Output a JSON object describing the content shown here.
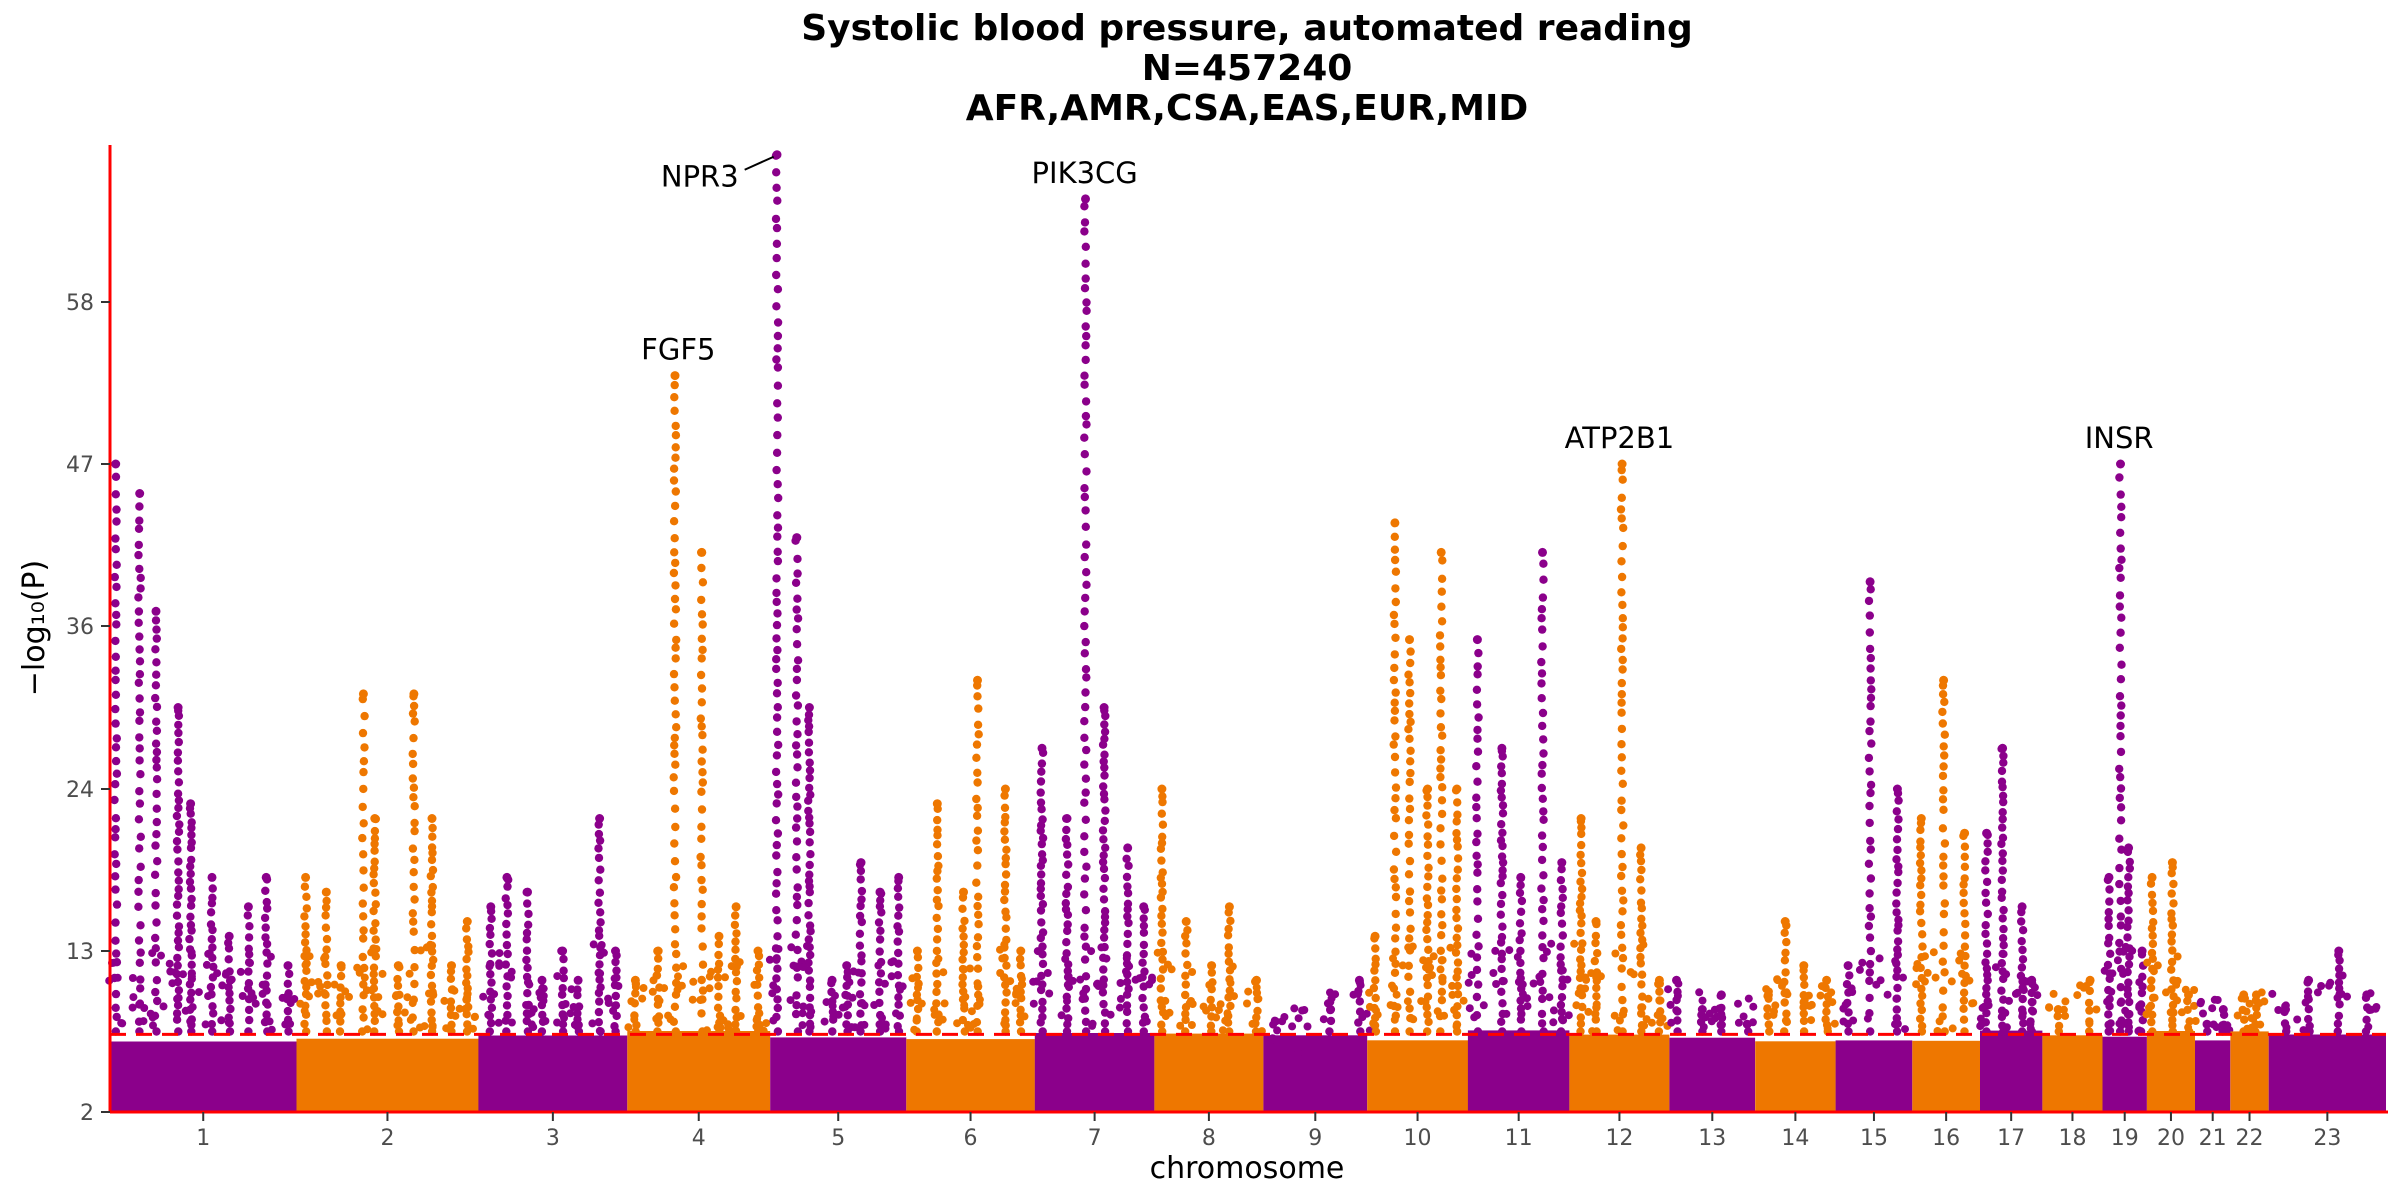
{
  "chart_data": {
    "type": "scatter",
    "subtype": "manhattan",
    "title_lines": [
      "Systolic blood pressure, automated reading",
      "N=457240",
      "AFR,AMR,CSA,EAS,EUR,MID"
    ],
    "xlabel": "chromosome",
    "ylabel": "−log₁₀(P)",
    "ylim": [
      2,
      68.5
    ],
    "yticks": [
      2,
      13,
      24,
      36,
      47,
      58
    ],
    "y_axis_transform": "compressed above ~13",
    "significance_threshold": 7.3,
    "colors": {
      "odd_chromosomes": "#8B008B",
      "even_chromosomes": "#EE7700",
      "threshold_line": "#FF0000",
      "axis_line": "#FF0000"
    },
    "grid": false,
    "legend": "none",
    "chromosomes": [
      {
        "label": "1",
        "peaks": [
          47,
          45,
          37,
          30,
          23,
          18,
          14,
          16,
          18,
          12
        ]
      },
      {
        "label": "2",
        "peaks": [
          18,
          17,
          12,
          31,
          22,
          12,
          31,
          22,
          12,
          15
        ]
      },
      {
        "label": "3",
        "peaks": [
          16,
          18,
          17,
          11,
          13,
          11,
          22,
          13
        ]
      },
      {
        "label": "4",
        "peaks": [
          11,
          13,
          53,
          41,
          14,
          16,
          13
        ]
      },
      {
        "label": "5",
        "peaks": [
          68,
          42,
          30,
          11,
          12,
          19,
          17,
          18
        ]
      },
      {
        "label": "6",
        "peaks": [
          13,
          23,
          17,
          32,
          24,
          13
        ]
      },
      {
        "label": "7",
        "peaks": [
          27,
          22,
          65,
          30,
          20,
          16
        ]
      },
      {
        "label": "8",
        "peaks": [
          24,
          15,
          12,
          16,
          11
        ]
      },
      {
        "label": "9",
        "peaks": [
          7,
          6,
          9,
          11
        ]
      },
      {
        "label": "10",
        "peaks": [
          14,
          43,
          35,
          24,
          41,
          24
        ]
      },
      {
        "label": "11",
        "peaks": [
          35,
          27,
          18,
          41,
          19
        ]
      },
      {
        "label": "12",
        "peaks": [
          22,
          15,
          47,
          20,
          11
        ]
      },
      {
        "label": "13",
        "peaks": [
          11,
          9,
          10,
          8
        ]
      },
      {
        "label": "14",
        "peaks": [
          10,
          15,
          12,
          11
        ]
      },
      {
        "label": "15",
        "peaks": [
          12,
          39,
          24
        ]
      },
      {
        "label": "16",
        "peaks": [
          22,
          32,
          21
        ]
      },
      {
        "label": "17",
        "peaks": [
          21,
          27,
          16,
          11
        ]
      },
      {
        "label": "18",
        "peaks": [
          9,
          11
        ]
      },
      {
        "label": "19",
        "peaks": [
          18,
          47,
          20,
          13
        ]
      },
      {
        "label": "20",
        "peaks": [
          18,
          19,
          10
        ]
      },
      {
        "label": "21",
        "peaks": [
          8,
          9
        ]
      },
      {
        "label": "22",
        "peaks": [
          10,
          10
        ]
      },
      {
        "label": "23",
        "peaks": [
          9,
          11,
          13,
          10
        ]
      }
    ],
    "annotations": [
      {
        "gene": "NPR3",
        "chromosome": "5",
        "value": 68
      },
      {
        "gene": "PIK3CG",
        "chromosome": "7",
        "value": 65
      },
      {
        "gene": "FGF5",
        "chromosome": "4",
        "value": 53
      },
      {
        "gene": "ATP2B1",
        "chromosome": "12",
        "value": 47
      },
      {
        "gene": "INSR",
        "chromosome": "19",
        "value": 47
      }
    ]
  }
}
